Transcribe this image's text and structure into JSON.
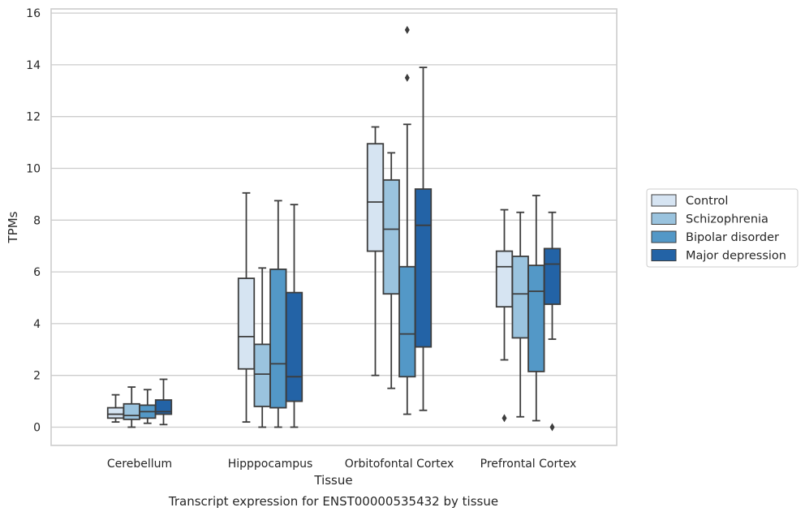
{
  "chart_data": {
    "type": "box",
    "title": "",
    "caption": "Transcript expression for ENST00000535432 by tissue",
    "xlabel": "Tissue",
    "ylabel": "TPMs",
    "ylim": [
      -0.75,
      16.15
    ],
    "yticks": [
      0,
      2,
      4,
      6,
      8,
      10,
      12,
      14,
      16
    ],
    "grid": "horizontal",
    "legend_position": "outside-right",
    "categories": [
      "Cerebellum",
      "Hipppocampus",
      "Orbitofontal Cortex",
      "Prefrontal Cortex"
    ],
    "series": [
      {
        "name": "Control",
        "color": "#d6e4f2",
        "boxes": [
          {
            "whislo": 0.2,
            "q1": 0.35,
            "med": 0.5,
            "q3": 0.75,
            "whishi": 1.25,
            "fliers": []
          },
          {
            "whislo": 0.2,
            "q1": 2.25,
            "med": 3.5,
            "q3": 5.75,
            "whishi": 9.05,
            "fliers": []
          },
          {
            "whislo": 2.0,
            "q1": 6.8,
            "med": 8.7,
            "q3": 10.95,
            "whishi": 11.6,
            "fliers": []
          },
          {
            "whislo": 2.6,
            "q1": 4.65,
            "med": 6.2,
            "q3": 6.8,
            "whishi": 8.4,
            "fliers": [
              0.35
            ]
          }
        ]
      },
      {
        "name": "Schizophrenia",
        "color": "#9ac3de",
        "boxes": [
          {
            "whislo": 0.0,
            "q1": 0.3,
            "med": 0.45,
            "q3": 0.9,
            "whishi": 1.55,
            "fliers": []
          },
          {
            "whislo": 0.0,
            "q1": 0.8,
            "med": 2.05,
            "q3": 3.2,
            "whishi": 6.15,
            "fliers": []
          },
          {
            "whislo": 1.5,
            "q1": 5.15,
            "med": 7.65,
            "q3": 9.55,
            "whishi": 10.6,
            "fliers": []
          },
          {
            "whislo": 0.4,
            "q1": 3.45,
            "med": 5.15,
            "q3": 6.6,
            "whishi": 8.3,
            "fliers": []
          }
        ]
      },
      {
        "name": "Bipolar disorder",
        "color": "#5398c7",
        "boxes": [
          {
            "whislo": 0.15,
            "q1": 0.35,
            "med": 0.6,
            "q3": 0.85,
            "whishi": 1.45,
            "fliers": []
          },
          {
            "whislo": 0.0,
            "q1": 0.75,
            "med": 2.45,
            "q3": 6.1,
            "whishi": 8.75,
            "fliers": []
          },
          {
            "whislo": 0.5,
            "q1": 1.95,
            "med": 3.6,
            "q3": 6.2,
            "whishi": 11.7,
            "fliers": [
              13.5,
              15.35
            ]
          },
          {
            "whislo": 0.25,
            "q1": 2.15,
            "med": 5.25,
            "q3": 6.25,
            "whishi": 8.95,
            "fliers": []
          }
        ]
      },
      {
        "name": "Major depression",
        "color": "#2363a6",
        "boxes": [
          {
            "whislo": 0.1,
            "q1": 0.5,
            "med": 0.6,
            "q3": 1.05,
            "whishi": 1.85,
            "fliers": []
          },
          {
            "whislo": 0.0,
            "q1": 1.0,
            "med": 1.95,
            "q3": 5.2,
            "whishi": 8.6,
            "fliers": []
          },
          {
            "whislo": 0.65,
            "q1": 3.1,
            "med": 7.8,
            "q3": 9.2,
            "whishi": 13.9,
            "fliers": []
          },
          {
            "whislo": 3.4,
            "q1": 4.75,
            "med": 6.3,
            "q3": 6.9,
            "whishi": 8.3,
            "fliers": [
              0.0
            ]
          }
        ]
      }
    ]
  }
}
